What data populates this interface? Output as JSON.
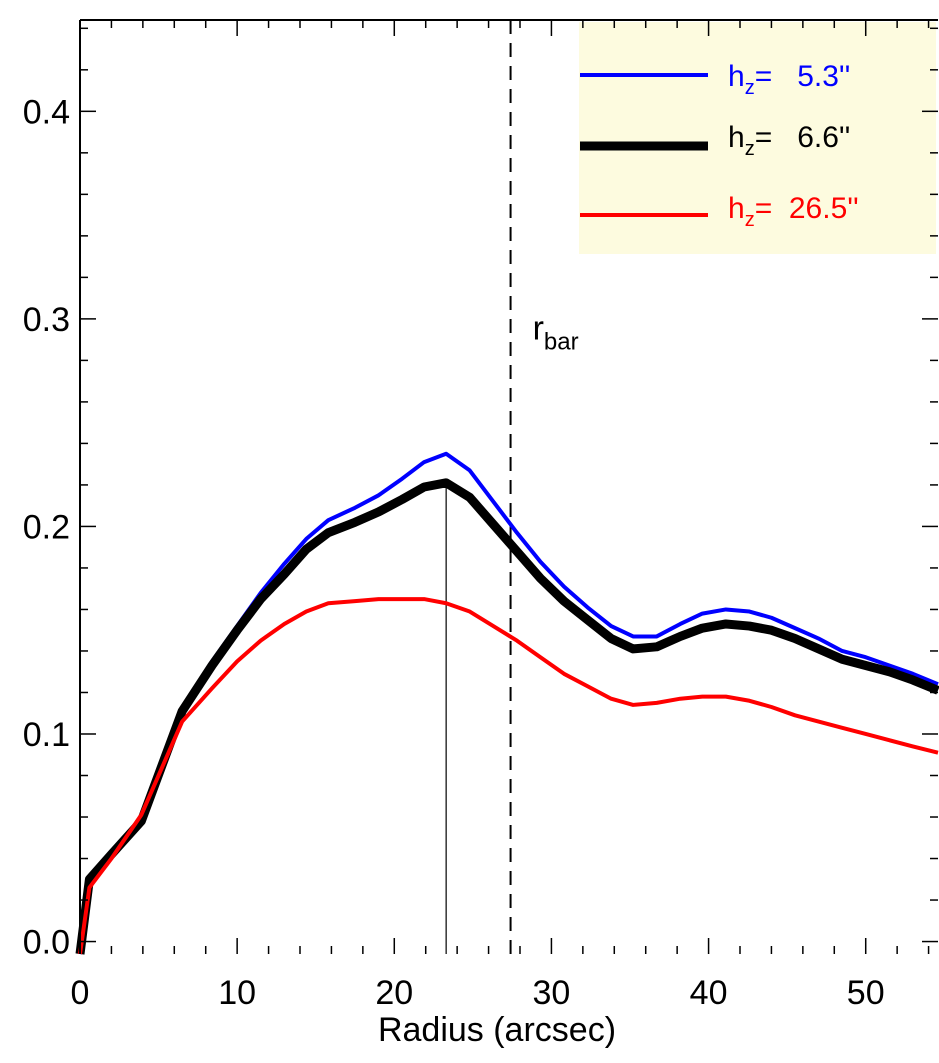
{
  "chart_data": {
    "type": "line",
    "title": "",
    "xlabel": "Radius (arcsec)",
    "ylabel": "",
    "xlim": [
      0,
      54.6
    ],
    "ylim": [
      -0.006,
      0.444
    ],
    "x_ticks": [
      0,
      10,
      20,
      30,
      40,
      50
    ],
    "x_tick_labels": [
      "0",
      "10",
      "20",
      "30",
      "40",
      "50"
    ],
    "y_ticks": [
      0.0,
      0.1,
      0.2,
      0.3,
      0.4
    ],
    "y_tick_labels": [
      "0.0",
      "0.1",
      "0.2",
      "0.3",
      "0.4"
    ],
    "grid": false,
    "legend_position": "top-right",
    "legend_background": "#fdfbdf",
    "legend": [
      {
        "prefix": "h",
        "subscript": "z",
        "suffix": "=   5.3''",
        "color": "#0000ff"
      },
      {
        "prefix": "h",
        "subscript": "z",
        "suffix": "=   6.6''",
        "color": "#000000"
      },
      {
        "prefix": "h",
        "subscript": "z",
        "suffix": "=  26.5''",
        "color": "#ff0000"
      }
    ],
    "annotations": {
      "bar_label": {
        "main": "r",
        "subscript": "bar",
        "x": 28.8,
        "y": 0.29
      },
      "bar_radius_line": {
        "x": 27.4,
        "style": "dashed"
      },
      "peak_line": {
        "x": 23.3,
        "y_top": 0.221,
        "style": "solid-thin"
      }
    },
    "series": [
      {
        "color": "#0000ff",
        "width": 4,
        "x": [
          0,
          0.6,
          2,
          3.9,
          6.5,
          8.4,
          10,
          11.5,
          13,
          14.4,
          15.8,
          17.5,
          19,
          20.5,
          21.9,
          23.3,
          24.8,
          26.3,
          27.8,
          29.3,
          30.8,
          32.3,
          33.8,
          35.2,
          36.7,
          38.2,
          39.6,
          41.1,
          42.6,
          44,
          45.5,
          47,
          48.5,
          50,
          51.5,
          53,
          54.6
        ],
        "y": [
          -0.006,
          0.031,
          0.043,
          0.059,
          0.112,
          0.135,
          0.152,
          0.168,
          0.182,
          0.194,
          0.203,
          0.209,
          0.215,
          0.223,
          0.231,
          0.235,
          0.227,
          0.212,
          0.197,
          0.183,
          0.171,
          0.161,
          0.152,
          0.147,
          0.147,
          0.153,
          0.158,
          0.16,
          0.159,
          0.156,
          0.151,
          0.146,
          0.14,
          0.137,
          0.133,
          0.129,
          0.124
        ]
      },
      {
        "color": "#000000",
        "width": 9,
        "x": [
          0,
          0.6,
          2,
          3.9,
          6.5,
          8.4,
          10,
          11.5,
          13,
          14.4,
          15.8,
          17.5,
          19,
          20.5,
          21.9,
          23.3,
          24.8,
          26.3,
          27.8,
          29.3,
          30.8,
          32.3,
          33.8,
          35.2,
          36.7,
          38.2,
          39.6,
          41.1,
          42.6,
          44,
          45.5,
          47,
          48.5,
          50,
          51.5,
          53,
          54.6
        ],
        "y": [
          -0.006,
          0.03,
          0.042,
          0.058,
          0.111,
          0.133,
          0.15,
          0.165,
          0.177,
          0.189,
          0.197,
          0.202,
          0.207,
          0.213,
          0.219,
          0.221,
          0.214,
          0.201,
          0.188,
          0.175,
          0.164,
          0.155,
          0.146,
          0.141,
          0.142,
          0.147,
          0.151,
          0.153,
          0.152,
          0.15,
          0.146,
          0.141,
          0.136,
          0.133,
          0.13,
          0.126,
          0.121
        ]
      },
      {
        "color": "#ff0000",
        "width": 4,
        "x": [
          0,
          0.6,
          2,
          3.9,
          6.5,
          8.4,
          10,
          11.5,
          13,
          14.4,
          15.8,
          17.5,
          19,
          20.5,
          21.9,
          23.3,
          24.8,
          26.3,
          27.8,
          29.3,
          30.8,
          32.3,
          33.8,
          35.2,
          36.7,
          38.2,
          39.6,
          41.1,
          42.6,
          44,
          45.5,
          47,
          48.5,
          50,
          51.5,
          53,
          54.6
        ],
        "y": [
          -0.006,
          0.026,
          0.04,
          0.061,
          0.106,
          0.122,
          0.135,
          0.145,
          0.153,
          0.159,
          0.163,
          0.164,
          0.165,
          0.165,
          0.165,
          0.163,
          0.159,
          0.152,
          0.145,
          0.137,
          0.129,
          0.123,
          0.117,
          0.114,
          0.115,
          0.117,
          0.118,
          0.118,
          0.116,
          0.113,
          0.109,
          0.106,
          0.103,
          0.1,
          0.097,
          0.094,
          0.091
        ]
      }
    ]
  }
}
